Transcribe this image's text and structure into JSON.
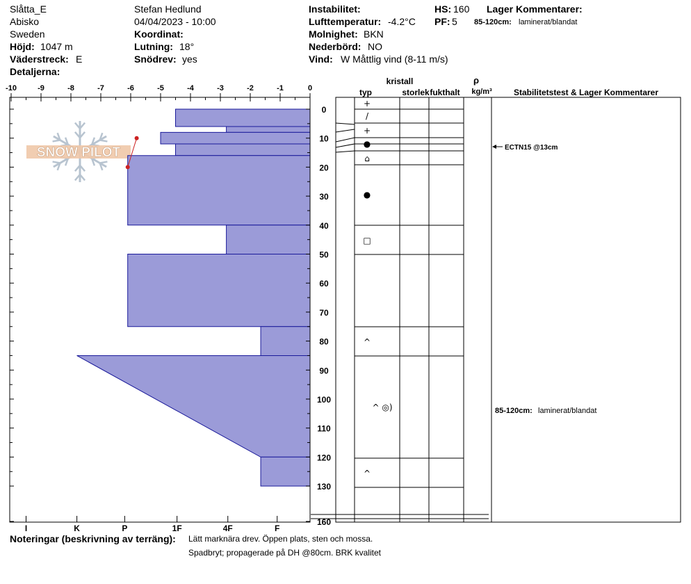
{
  "header": {
    "site": "Slåtta_E",
    "location": "Abisko",
    "country": "Sweden",
    "elevation_label": "Höjd:",
    "elevation_value": "1047 m",
    "aspect_label": "Väderstreck:",
    "aspect_value": "E",
    "details_label": "Detaljerna:",
    "observer": "Stefan Hedlund",
    "datetime": "04/04/2023 - 10:00",
    "coord_label": "Koordinat:",
    "slope_label": "Lutning:",
    "slope_value": "18°",
    "snowdrift_label": "Snödrev:",
    "snowdrift_value": "yes",
    "instability_label": "Instabilitet:",
    "airtemp_label": "Lufttemperatur:",
    "airtemp_value": "-4.2°C",
    "cloud_label": "Molnighet:",
    "cloud_value": "BKN",
    "precip_label": "Nederbörd:",
    "precip_value": "NO",
    "wind_label": "Vind:",
    "wind_value": "W Måttlig vind (8-11 m/s)",
    "hs_label": "HS:",
    "hs_value": "160",
    "pf_label": "PF:",
    "pf_value": "5",
    "layer_comments_label": "Lager Kommentarer:",
    "layer_comment_range": "85-120cm:",
    "layer_comment_text": "laminerat/blandat"
  },
  "columns": {
    "crystal": "kristall",
    "type": "typ",
    "size": "storlek",
    "moisture": "fukthalt",
    "rho": "ρ",
    "density_unit": "kg/m³",
    "stability": "Stabilitetstest & Lager Kommentarer"
  },
  "logo_text": "SNOW PILOT",
  "notes": {
    "label": "Noteringar (beskrivning av terräng):",
    "line1": "Lätt marknära drev. Öppen plats, sten och mossa.",
    "line2": "Spadbryt; propagerade på DH @80cm. BRK kvalitet"
  },
  "colors": {
    "layer_fill": "#9b9bd8",
    "layer_stroke": "#1a1a9a",
    "temp_line": "#cc2222"
  },
  "chart_data": {
    "type": "snow_profile",
    "temperature_axis": {
      "ticks": [
        "-10",
        "-9",
        "-8",
        "-7",
        "-6",
        "-5",
        "-4",
        "-3",
        "-2",
        "-1",
        "0"
      ],
      "min": -10,
      "max": 0
    },
    "depth_axis": {
      "ticks": [
        "0",
        "10",
        "20",
        "30",
        "40",
        "50",
        "60",
        "70",
        "80",
        "90",
        "100",
        "110",
        "120",
        "130",
        "160"
      ],
      "min": 0,
      "max": 160
    },
    "hardness_axis": {
      "ticks": [
        "I",
        "K",
        "P",
        "1F",
        "4F",
        "F"
      ]
    },
    "layers": [
      {
        "top": 0,
        "bottom": 6,
        "hardness_top": 4.5,
        "hardness_bottom": 4.5
      },
      {
        "top": 6,
        "bottom": 8,
        "hardness_top": 2.8,
        "hardness_bottom": 2.8
      },
      {
        "top": 8,
        "bottom": 12,
        "hardness_top": 5.0,
        "hardness_bottom": 5.0
      },
      {
        "top": 12,
        "bottom": 16,
        "hardness_top": 4.5,
        "hardness_bottom": 4.5
      },
      {
        "top": 16,
        "bottom": 40,
        "hardness_top": 6.1,
        "hardness_bottom": 6.1
      },
      {
        "top": 40,
        "bottom": 50,
        "hardness_top": 2.8,
        "hardness_bottom": 2.8
      },
      {
        "top": 50,
        "bottom": 75,
        "hardness_top": 6.1,
        "hardness_bottom": 6.1
      },
      {
        "top": 75,
        "bottom": 85,
        "hardness_top": 1.65,
        "hardness_bottom": 1.65
      },
      {
        "top": 85,
        "bottom": 120,
        "hardness_top": 7.8,
        "hardness_bottom": 1.65
      },
      {
        "top": 120,
        "bottom": 130,
        "hardness_top": 1.65,
        "hardness_bottom": 1.65
      }
    ],
    "layer_boundaries": [
      0,
      5,
      10,
      12,
      15,
      19,
      40,
      50,
      75,
      85,
      120,
      130
    ],
    "temperature_profile": [
      {
        "depth": 10,
        "temp": -5.8
      },
      {
        "depth": 20,
        "temp": -6.1
      }
    ],
    "grain_forms": [
      {
        "depth": 2,
        "symbol": "+"
      },
      {
        "depth": 6.5,
        "symbol": "/"
      },
      {
        "depth": 11,
        "symbol": "+"
      },
      {
        "depth": 16,
        "symbol": "●"
      },
      {
        "depth": 21,
        "symbol": "⌂"
      },
      {
        "depth": 33,
        "symbol": "●"
      },
      {
        "depth": 49,
        "symbol": "□"
      },
      {
        "depth": 80,
        "symbol": "^"
      },
      {
        "depth": 102,
        "symbol": "^ ◎)"
      },
      {
        "depth": 125,
        "symbol": "^"
      }
    ],
    "stability_tests": [
      {
        "depth": 13,
        "label": "ECTN15 @13cm"
      }
    ],
    "layer_comments": [
      {
        "depth": 100,
        "range": "85-120cm:",
        "text": "laminerat/blandat"
      }
    ]
  }
}
